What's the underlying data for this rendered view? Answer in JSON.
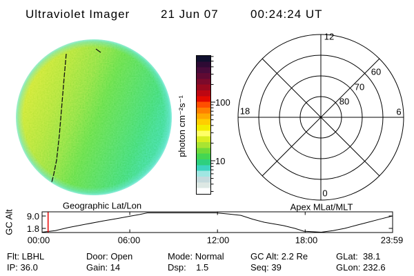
{
  "header": {
    "title": "Ultraviolet Imager",
    "date": "21 Jun 07",
    "time": "00:24:24 UT"
  },
  "status": {
    "rows": [
      [
        "Flt: LBHL",
        "Door: Open",
        "Mode: Normal",
        "GC Alt: 2.2 Re",
        "GLat:  38.1"
      ],
      [
        "IP: 36.0",
        "Gain: 14",
        "Dsp:    1.5",
        "Seq: 39",
        "GLon: 232.6"
      ]
    ]
  },
  "chart_data": [
    {
      "type": "heatmap",
      "name": "uv-full-disk-image",
      "description": "Full-disk ultraviolet image, near-uniform dayglow; yellow-green on left limb, green center, teal toward right limb, cyan fringe at edge; thin dark dashed meridian line on left side",
      "palette_sample": {
        "left": "#d9e832",
        "center": "#57da45",
        "right": "#3ed9a8",
        "rim": "#8ae8d8"
      },
      "overlay_line_color": "#101010"
    },
    {
      "type": "colorbar",
      "scale": "log",
      "unit": "photon cm⁻²s⁻¹",
      "major_ticks": [
        "100",
        "10"
      ],
      "major_tick_values": [
        100,
        10
      ],
      "range_approx": [
        3,
        600
      ],
      "colors": [
        "#10102e",
        "#2e0a34",
        "#480b3a",
        "#600a33",
        "#7c0a2b",
        "#99091e",
        "#bd0712",
        "#e30b00",
        "#ff4e00",
        "#ff8000",
        "#ffaa00",
        "#ffce00",
        "#f2ee00",
        "#ffff66",
        "#d9ee22",
        "#a9e432",
        "#70da3a",
        "#44d652",
        "#2ed07e",
        "#3ed4c0",
        "#a0e6e2",
        "#c6dadd",
        "#dde8e4",
        "#feffff"
      ]
    },
    {
      "type": "polar-grid",
      "title": "Apex MLat/MLT",
      "mlt_labels": {
        "top": "12",
        "left": "18",
        "right": "6",
        "bottom": "0"
      },
      "mlat_rings": [
        80,
        70,
        60,
        50
      ],
      "ring_labels": [
        "60",
        "70",
        "80"
      ],
      "spokes_every_deg": 45
    },
    {
      "type": "line",
      "title": "Geographic Lat/Lon",
      "ylabel": "GC Alt",
      "yticks": [
        "9.0",
        "1.8"
      ],
      "ytick_values": [
        9.0,
        1.8
      ],
      "xticks": [
        "00:00",
        "06:00",
        "12:00",
        "18:00",
        "23:59"
      ],
      "xtick_hours": [
        0,
        6,
        12,
        18,
        23.983
      ],
      "series": [
        {
          "name": "GC Alt (Re)",
          "points": [
            [
              0,
              1.0
            ],
            [
              0.9,
              1.35
            ],
            [
              1.8,
              2.0
            ],
            [
              3,
              3.1
            ],
            [
              4.2,
              4.8
            ],
            [
              5.2,
              6.6
            ],
            [
              6.1,
              9.0
            ],
            [
              6.7,
              11.0
            ],
            [
              7.2,
              13.5
            ],
            [
              11.9,
              13.5
            ],
            [
              12.8,
              11.5
            ],
            [
              13.6,
              9.8
            ],
            [
              14.4,
              6.0
            ],
            [
              15.2,
              4.0
            ],
            [
              16.5,
              2.6
            ],
            [
              17.3,
              1.8
            ],
            [
              17.9,
              1.25
            ],
            [
              19.1,
              1.0
            ],
            [
              19.9,
              1.35
            ],
            [
              20.7,
              1.8
            ],
            [
              21.5,
              2.7
            ],
            [
              22.3,
              4.0
            ],
            [
              23.1,
              5.9
            ],
            [
              23.98,
              9.0
            ]
          ]
        }
      ],
      "marker": {
        "hour": 0.41,
        "color": "#e80000"
      }
    }
  ]
}
